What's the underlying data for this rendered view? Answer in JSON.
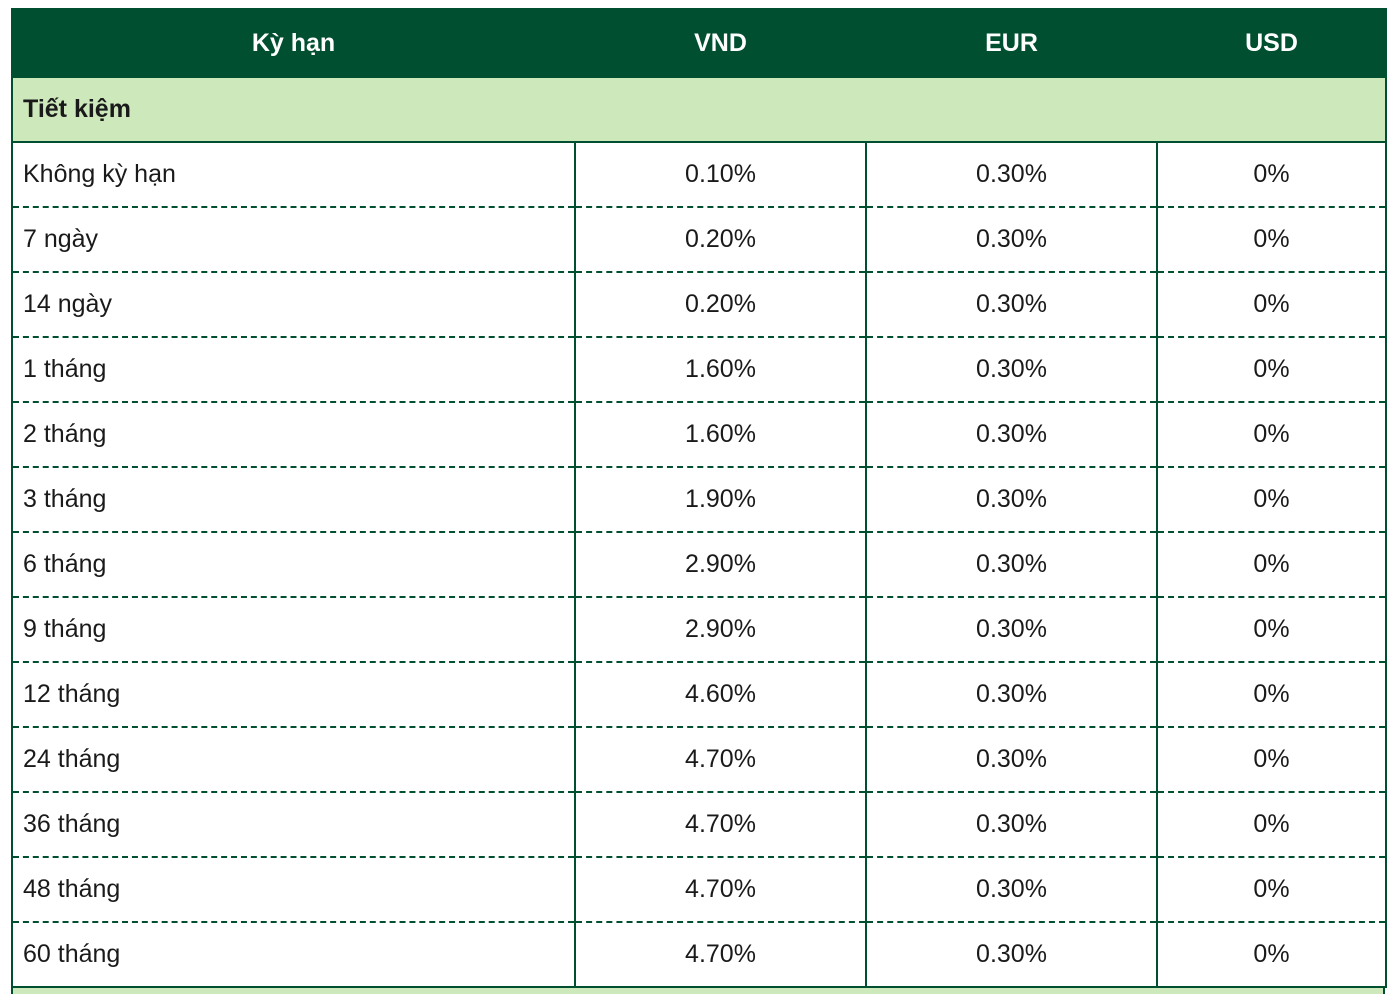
{
  "table": {
    "headers": [
      "Kỳ hạn",
      "VND",
      "EUR",
      "USD"
    ],
    "section_label": "Tiết kiệm",
    "rows": [
      {
        "term": "Không kỳ hạn",
        "vnd": "0.10%",
        "eur": "0.30%",
        "usd": "0%"
      },
      {
        "term": "7 ngày",
        "vnd": "0.20%",
        "eur": "0.30%",
        "usd": "0%"
      },
      {
        "term": "14 ngày",
        "vnd": "0.20%",
        "eur": "0.30%",
        "usd": "0%"
      },
      {
        "term": "1 tháng",
        "vnd": "1.60%",
        "eur": "0.30%",
        "usd": "0%"
      },
      {
        "term": "2 tháng",
        "vnd": "1.60%",
        "eur": "0.30%",
        "usd": "0%"
      },
      {
        "term": "3 tháng",
        "vnd": "1.90%",
        "eur": "0.30%",
        "usd": "0%"
      },
      {
        "term": "6 tháng",
        "vnd": "2.90%",
        "eur": "0.30%",
        "usd": "0%"
      },
      {
        "term": "9 tháng",
        "vnd": "2.90%",
        "eur": "0.30%",
        "usd": "0%"
      },
      {
        "term": "12 tháng",
        "vnd": "4.60%",
        "eur": "0.30%",
        "usd": "0%"
      },
      {
        "term": "24 tháng",
        "vnd": "4.70%",
        "eur": "0.30%",
        "usd": "0%"
      },
      {
        "term": "36 tháng",
        "vnd": "4.70%",
        "eur": "0.30%",
        "usd": "0%"
      },
      {
        "term": "48 tháng",
        "vnd": "4.70%",
        "eur": "0.30%",
        "usd": "0%"
      },
      {
        "term": "60 tháng",
        "vnd": "4.70%",
        "eur": "0.30%",
        "usd": "0%"
      }
    ]
  },
  "colors": {
    "header_bg": "#004f30",
    "header_text": "#ffffff",
    "section_bg": "#cde8ba",
    "border": "#004f30"
  }
}
